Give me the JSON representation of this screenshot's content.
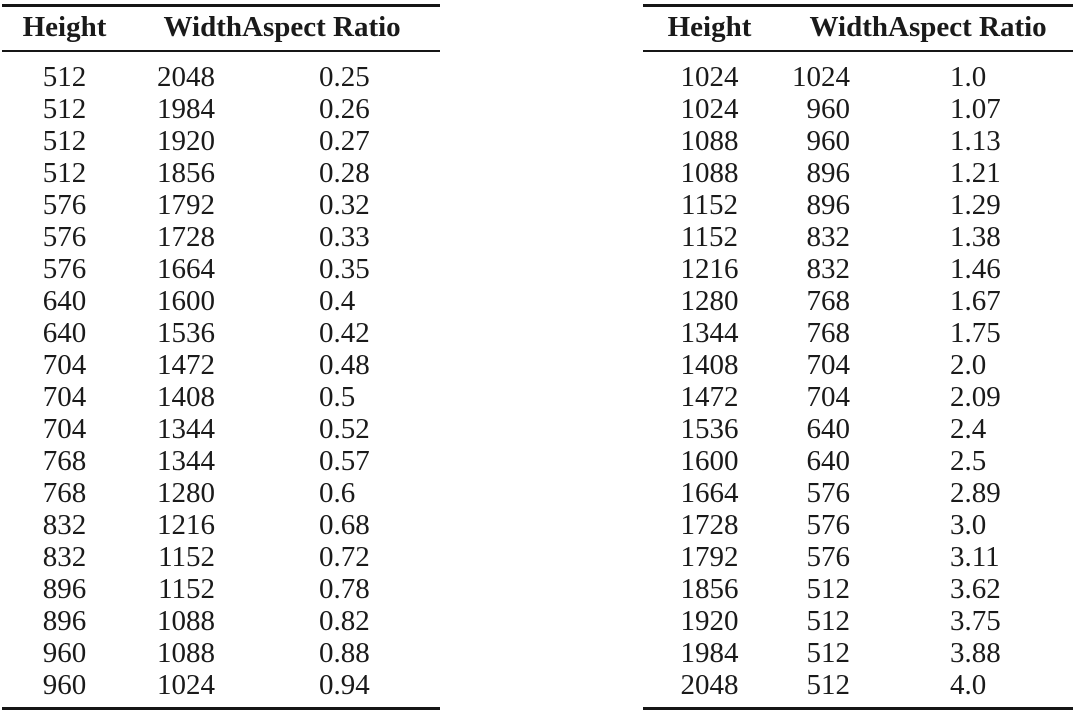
{
  "page": {
    "background": "#ffffff",
    "text_color": "#1a1a1a",
    "rule_color": "#161616"
  },
  "tables": [
    {
      "id": "resolution-table-low-aspect",
      "columns": [
        "Height",
        "Width",
        "Aspect Ratio"
      ],
      "rows": [
        [
          "512",
          "2048",
          "0.25"
        ],
        [
          "512",
          "1984",
          "0.26"
        ],
        [
          "512",
          "1920",
          "0.27"
        ],
        [
          "512",
          "1856",
          "0.28"
        ],
        [
          "576",
          "1792",
          "0.32"
        ],
        [
          "576",
          "1728",
          "0.33"
        ],
        [
          "576",
          "1664",
          "0.35"
        ],
        [
          "640",
          "1600",
          "0.4"
        ],
        [
          "640",
          "1536",
          "0.42"
        ],
        [
          "704",
          "1472",
          "0.48"
        ],
        [
          "704",
          "1408",
          "0.5"
        ],
        [
          "704",
          "1344",
          "0.52"
        ],
        [
          "768",
          "1344",
          "0.57"
        ],
        [
          "768",
          "1280",
          "0.6"
        ],
        [
          "832",
          "1216",
          "0.68"
        ],
        [
          "832",
          "1152",
          "0.72"
        ],
        [
          "896",
          "1152",
          "0.78"
        ],
        [
          "896",
          "1088",
          "0.82"
        ],
        [
          "960",
          "1088",
          "0.88"
        ],
        [
          "960",
          "1024",
          "0.94"
        ]
      ]
    },
    {
      "id": "resolution-table-high-aspect",
      "columns": [
        "Height",
        "Width",
        "Aspect Ratio"
      ],
      "rows": [
        [
          "1024",
          "1024",
          "1.0"
        ],
        [
          "1024",
          "960",
          "1.07"
        ],
        [
          "1088",
          "960",
          "1.13"
        ],
        [
          "1088",
          "896",
          "1.21"
        ],
        [
          "1152",
          "896",
          "1.29"
        ],
        [
          "1152",
          "832",
          "1.38"
        ],
        [
          "1216",
          "832",
          "1.46"
        ],
        [
          "1280",
          "768",
          "1.67"
        ],
        [
          "1344",
          "768",
          "1.75"
        ],
        [
          "1408",
          "704",
          "2.0"
        ],
        [
          "1472",
          "704",
          "2.09"
        ],
        [
          "1536",
          "640",
          "2.4"
        ],
        [
          "1600",
          "640",
          "2.5"
        ],
        [
          "1664",
          "576",
          "2.89"
        ],
        [
          "1728",
          "576",
          "3.0"
        ],
        [
          "1792",
          "576",
          "3.11"
        ],
        [
          "1856",
          "512",
          "3.62"
        ],
        [
          "1920",
          "512",
          "3.75"
        ],
        [
          "1984",
          "512",
          "3.88"
        ],
        [
          "2048",
          "512",
          "4.0"
        ]
      ]
    }
  ]
}
